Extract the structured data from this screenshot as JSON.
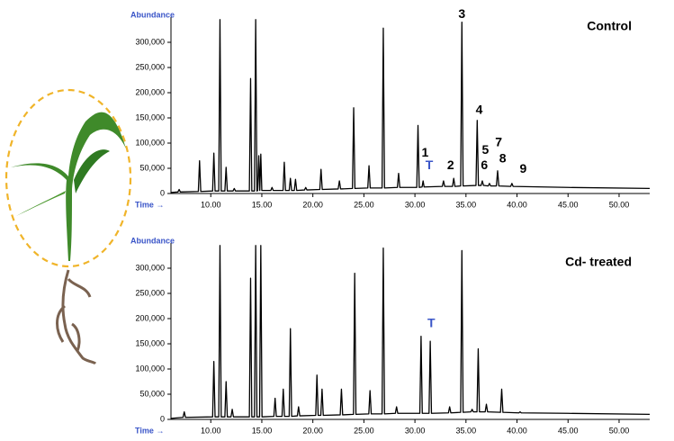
{
  "chart_data": [
    {
      "type": "line",
      "title": "Control",
      "ylabel": "Abundance",
      "xlabel": "Time →",
      "xlim": [
        6.1,
        53
      ],
      "ylim": [
        0,
        350000
      ],
      "xticks": [
        {
          "value": 10,
          "label": "10.00"
        },
        {
          "value": 15,
          "label": "15.00"
        },
        {
          "value": 20,
          "label": "20.00"
        },
        {
          "value": 25,
          "label": "25.00"
        },
        {
          "value": 30,
          "label": "30.00"
        },
        {
          "value": 35,
          "label": "35.00"
        },
        {
          "value": 40,
          "label": "40.00"
        },
        {
          "value": 45,
          "label": "45.00"
        },
        {
          "value": 50,
          "label": "50.00"
        }
      ],
      "yticks": [
        0,
        {
          "value": 50000,
          "label": "50,000"
        },
        {
          "value": 100000,
          "label": "100,000"
        },
        {
          "value": 150000,
          "label": "150,000"
        },
        {
          "value": 200000,
          "label": "200,000"
        },
        {
          "value": 250000,
          "label": "250,000"
        },
        {
          "value": 300000,
          "label": "300,000"
        }
      ],
      "series": [
        {
          "color": "#000000",
          "x": [
            6.1,
            6.78,
            6.9,
            7.02,
            8.78,
            8.9,
            9.02,
            10.18,
            10.3,
            10.42,
            10.78,
            10.9,
            11.02,
            11.38,
            11.5,
            11.62,
            12.18,
            12.3,
            12.42,
            13.78,
            13.9,
            14.02,
            14.28,
            14.4,
            14.52,
            14.6,
            14.7,
            14.8,
            14.9,
            15.0,
            15.88,
            16.0,
            16.12,
            17.08,
            17.2,
            17.32,
            17.68,
            17.8,
            17.92,
            18.18,
            18.3,
            18.42,
            19.18,
            19.3,
            19.42,
            20.68,
            20.8,
            20.92,
            22.48,
            22.6,
            22.72,
            23.88,
            24.0,
            24.12,
            25.38,
            25.5,
            25.62,
            26.78,
            26.9,
            27.02,
            28.28,
            28.4,
            28.52,
            30.18,
            30.3,
            30.42,
            30.7,
            30.8,
            30.9,
            32.68,
            32.8,
            32.92,
            33.68,
            33.8,
            33.92,
            34.48,
            34.6,
            34.72,
            35.98,
            36.1,
            36.22,
            36.48,
            36.6,
            36.72,
            37.18,
            37.3,
            37.42,
            37.98,
            38.1,
            38.22,
            39.38,
            39.5,
            39.62,
            45,
            53
          ],
          "values": [
            2000,
            3000,
            8000,
            3000,
            4000,
            65000,
            4000,
            5000,
            80000,
            5000,
            5000,
            345000,
            5000,
            5000,
            52000,
            5000,
            5000,
            10000,
            5000,
            5000,
            228000,
            5000,
            5000,
            345000,
            5000,
            6000,
            75000,
            6000,
            78000,
            6000,
            6000,
            12000,
            6000,
            6000,
            62000,
            6000,
            6000,
            30000,
            6000,
            6000,
            28000,
            6000,
            7000,
            12000,
            7000,
            8000,
            48000,
            8000,
            9000,
            25000,
            9000,
            10000,
            170000,
            10000,
            11000,
            55000,
            11000,
            11000,
            328000,
            11000,
            12000,
            40000,
            12000,
            12000,
            135000,
            12000,
            13000,
            25000,
            13000,
            14000,
            25000,
            14000,
            14000,
            30000,
            14000,
            15000,
            340000,
            15000,
            16000,
            145000,
            16000,
            16000,
            25000,
            16000,
            15000,
            20000,
            15000,
            15000,
            45000,
            15000,
            14000,
            20000,
            14000,
            12000,
            10000
          ]
        }
      ],
      "annotations": [
        {
          "text": "1",
          "x": 31,
          "y": 80000,
          "color": "#000000"
        },
        {
          "text": "T",
          "x": 31.4,
          "y": 55000,
          "color": "#3a55c8"
        },
        {
          "text": "2",
          "x": 33.5,
          "y": 55000,
          "color": "#000000"
        },
        {
          "text": "3",
          "x": 34.6,
          "y": 355000,
          "color": "#000000"
        },
        {
          "text": "4",
          "x": 36.3,
          "y": 165000,
          "color": "#000000"
        },
        {
          "text": "5",
          "x": 36.9,
          "y": 85000,
          "color": "#000000"
        },
        {
          "text": "6",
          "x": 36.8,
          "y": 55000,
          "color": "#000000"
        },
        {
          "text": "7",
          "x": 38.2,
          "y": 100000,
          "color": "#000000"
        },
        {
          "text": "8",
          "x": 38.6,
          "y": 68000,
          "color": "#000000"
        },
        {
          "text": "9",
          "x": 40.6,
          "y": 48000,
          "color": "#000000"
        }
      ]
    },
    {
      "type": "line",
      "title": "Cd- treated",
      "ylabel": "Abundance",
      "xlabel": "Time →",
      "xlim": [
        6.1,
        53
      ],
      "ylim": [
        0,
        350000
      ],
      "xticks": [
        {
          "value": 10,
          "label": "10.00"
        },
        {
          "value": 15,
          "label": "15.00"
        },
        {
          "value": 20,
          "label": "20.00"
        },
        {
          "value": 25,
          "label": "25.00"
        },
        {
          "value": 30,
          "label": "30.00"
        },
        {
          "value": 35,
          "label": "35.00"
        },
        {
          "value": 40,
          "label": "40.00"
        },
        {
          "value": 45,
          "label": "45.00"
        },
        {
          "value": 50,
          "label": "50.00"
        }
      ],
      "yticks": [
        0,
        {
          "value": 50000,
          "label": "50,000"
        },
        {
          "value": 100000,
          "label": "100,000"
        },
        {
          "value": 150000,
          "label": "150,000"
        },
        {
          "value": 200000,
          "label": "200,000"
        },
        {
          "value": 250000,
          "label": "250,000"
        },
        {
          "value": 300000,
          "label": "300,000"
        }
      ],
      "series": [
        {
          "color": "#000000",
          "x": [
            6.1,
            7.28,
            7.4,
            7.52,
            10.18,
            10.3,
            10.42,
            10.78,
            10.9,
            11.02,
            11.38,
            11.5,
            11.62,
            11.98,
            12.1,
            12.22,
            13.78,
            13.9,
            14.02,
            14.28,
            14.4,
            14.52,
            14.78,
            14.9,
            15.02,
            16.18,
            16.3,
            16.42,
            16.98,
            17.1,
            17.22,
            17.68,
            17.8,
            17.92,
            18.48,
            18.6,
            18.72,
            20.28,
            20.4,
            20.52,
            20.78,
            20.9,
            21.02,
            22.68,
            22.8,
            22.92,
            23.98,
            24.1,
            24.22,
            25.48,
            25.6,
            25.72,
            26.78,
            26.9,
            27.02,
            28.08,
            28.2,
            28.32,
            30.48,
            30.6,
            30.72,
            31.38,
            31.5,
            31.62,
            33.28,
            33.4,
            33.52,
            34.48,
            34.6,
            34.72,
            35.48,
            35.6,
            35.72,
            36.08,
            36.2,
            36.32,
            36.88,
            37.0,
            37.12,
            38.38,
            38.5,
            38.62,
            40.18,
            40.3,
            40.42,
            45,
            53
          ],
          "values": [
            2000,
            4000,
            15000,
            4000,
            5000,
            115000,
            5000,
            5000,
            345000,
            5000,
            5000,
            75000,
            5000,
            5000,
            20000,
            5000,
            5000,
            280000,
            5000,
            5000,
            345000,
            5000,
            5000,
            345000,
            5000,
            6000,
            42000,
            6000,
            6000,
            60000,
            6000,
            6000,
            180000,
            6000,
            7000,
            25000,
            7000,
            8000,
            88000,
            8000,
            8000,
            60000,
            8000,
            9000,
            60000,
            9000,
            10000,
            290000,
            10000,
            11000,
            57000,
            11000,
            11000,
            340000,
            11000,
            12000,
            25000,
            12000,
            12000,
            165000,
            12000,
            12000,
            155000,
            12000,
            13000,
            25000,
            13000,
            14000,
            335000,
            14000,
            15000,
            20000,
            15000,
            15000,
            140000,
            15000,
            15000,
            30000,
            15000,
            14000,
            60000,
            14000,
            13000,
            15000,
            13000,
            12000,
            10000
          ]
        }
      ],
      "annotations": [
        {
          "text": "T",
          "x": 31.6,
          "y": 190000,
          "color": "#3a55c8"
        }
      ]
    }
  ]
}
